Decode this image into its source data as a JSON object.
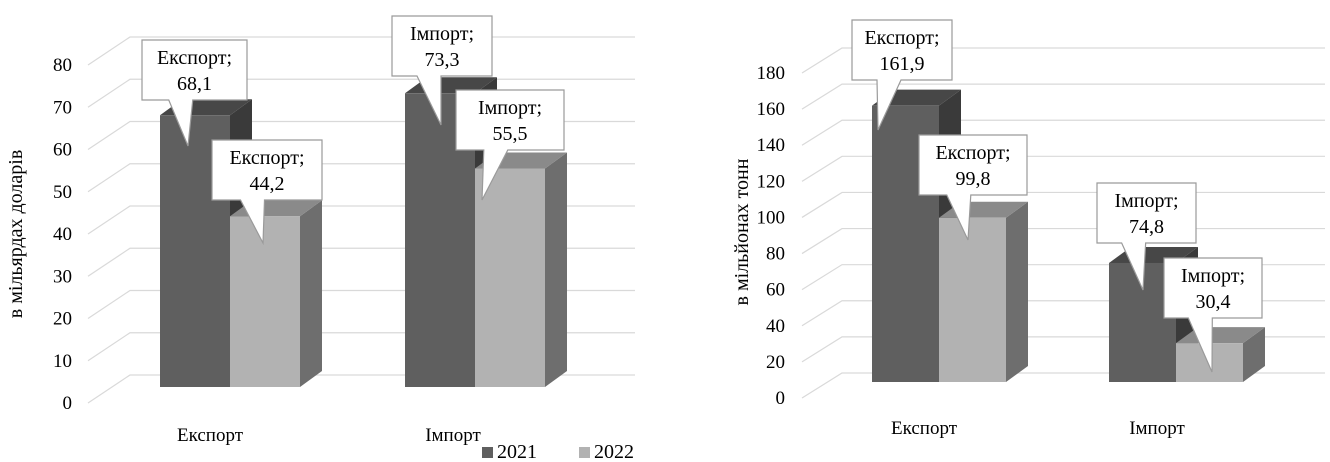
{
  "chart_data": [
    {
      "type": "bar",
      "ylabel": "в мільярдах доларів",
      "ylim": [
        0,
        80
      ],
      "yticks": [
        "0",
        "10",
        "20",
        "30",
        "40",
        "50",
        "60",
        "70",
        "80"
      ],
      "categories": [
        "Експорт",
        "Імпорт"
      ],
      "series": [
        {
          "name": "2021",
          "values": [
            68.1,
            73.3
          ]
        },
        {
          "name": "2022",
          "values": [
            44.2,
            55.5
          ]
        }
      ],
      "data_labels": [
        [
          "Експорт;",
          "68,1"
        ],
        [
          "Імпорт;",
          "73,3"
        ],
        [
          "Експорт;",
          "44,2"
        ],
        [
          "Імпорт;",
          "55,5"
        ]
      ],
      "grid": true
    },
    {
      "type": "bar",
      "ylabel": "в мільйонах тонн",
      "ylim": [
        0,
        180
      ],
      "yticks": [
        "0",
        "20",
        "40",
        "60",
        "80",
        "100",
        "120",
        "140",
        "160",
        "180"
      ],
      "categories": [
        "Експорт",
        "Імпорт"
      ],
      "series": [
        {
          "name": "2021",
          "values": [
            161.9,
            74.8
          ]
        },
        {
          "name": "2022",
          "values": [
            99.8,
            30.4
          ]
        }
      ],
      "data_labels": [
        [
          "Експорт;",
          "161,9"
        ],
        [
          "Імпорт;",
          "74,8"
        ],
        [
          "Експорт;",
          "99,8"
        ],
        [
          "Імпорт;",
          "30,4"
        ]
      ],
      "grid": true
    }
  ],
  "legend": {
    "placement": "bottom-center",
    "items": [
      {
        "label": "2021",
        "color": "#5f5f5f"
      },
      {
        "label": "2022",
        "color": "#b2b2b2"
      }
    ]
  },
  "colors": {
    "s2021_front": "#5f5f5f",
    "s2021_side": "#3a3a3a",
    "s2021_top": "#474747",
    "s2022_front": "#b2b2b2",
    "s2022_side": "#6e6e6e",
    "s2022_top": "#8a8a8a",
    "grid": "#d9d9d9"
  }
}
